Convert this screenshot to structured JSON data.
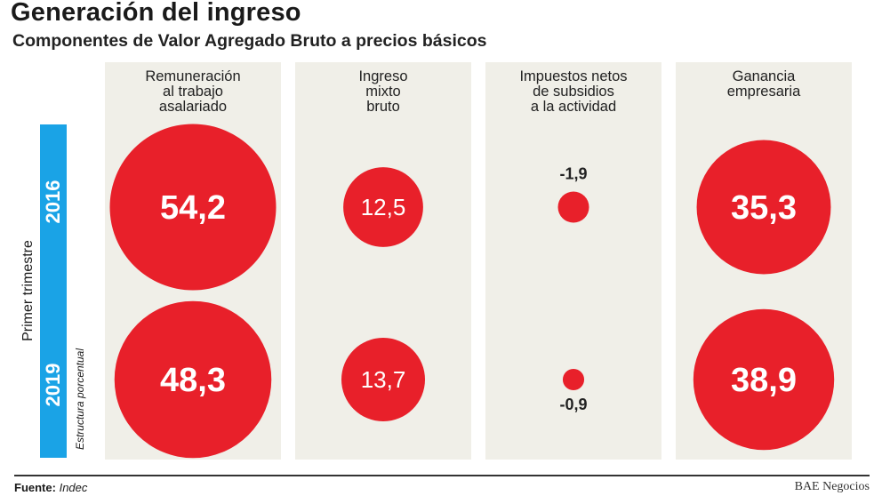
{
  "title": "Generación del ingreso",
  "subtitle": "Componentes de Valor Agregado Bruto a precios básicos",
  "side_label": "Primer trimestre",
  "unit_note": "Estructura porcentual",
  "source_label": "Fuente:",
  "source_value": "Indec",
  "brand": "BAE Negocios",
  "colors": {
    "bubble": "#e8202a",
    "year_bar": "#1aa3e6",
    "panel": "#f0efe8"
  },
  "chart_data": {
    "type": "bubble-matrix",
    "title": "Generación del ingreso",
    "categories": [
      [
        "Remuneración",
        "al trabajo",
        "asalariado"
      ],
      [
        "Ingreso",
        "mixto",
        "bruto"
      ],
      [
        "Impuestos netos",
        "de subsidios",
        "a la actividad"
      ],
      [
        "Ganancia",
        "empresaria"
      ]
    ],
    "series": [
      {
        "name": "2016",
        "labels": [
          "54,2",
          "12,5",
          "-1,9",
          "35,3"
        ],
        "values": [
          54.2,
          12.5,
          -1.9,
          35.3
        ]
      },
      {
        "name": "2019",
        "labels": [
          "48,3",
          "13,7",
          "-0,9",
          "38,9"
        ],
        "values": [
          48.3,
          13.7,
          -0.9,
          38.9
        ]
      }
    ]
  }
}
